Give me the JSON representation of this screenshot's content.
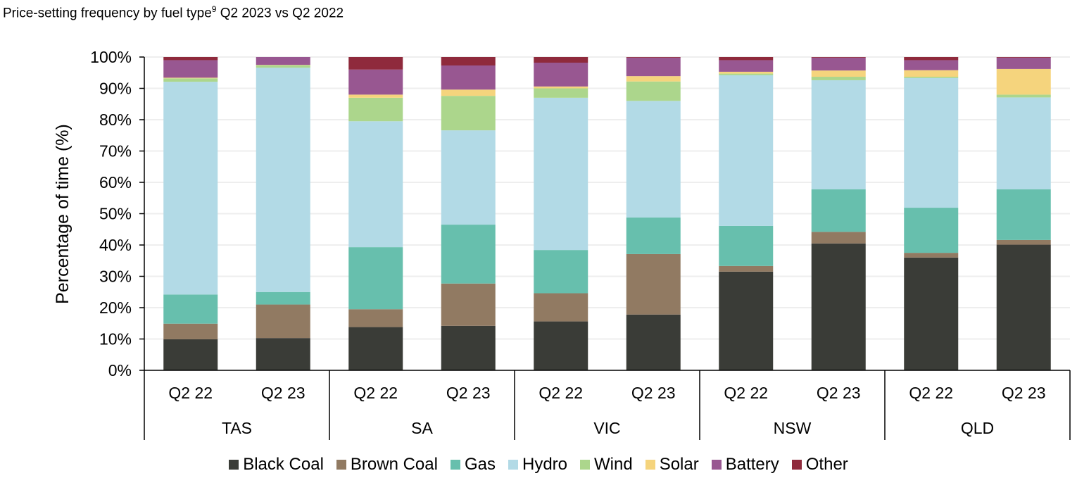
{
  "chart_data": {
    "type": "bar",
    "stacked": true,
    "title": "Price-setting frequency by fuel type",
    "title_superscript": "9",
    "title_suffix": " Q2 2023 vs Q2 2022",
    "xlabel": "",
    "ylabel": "Percentage of time (%)",
    "ylim": [
      0,
      100
    ],
    "yticks": [
      "0%",
      "10%",
      "20%",
      "30%",
      "40%",
      "50%",
      "60%",
      "70%",
      "80%",
      "90%",
      "100%"
    ],
    "grid": true,
    "legend_position": "bottom",
    "groups": [
      {
        "name": "TAS",
        "categories": [
          "Q2 22",
          "Q2 23"
        ]
      },
      {
        "name": "SA",
        "categories": [
          "Q2 22",
          "Q2 23"
        ]
      },
      {
        "name": "VIC",
        "categories": [
          "Q2 22",
          "Q2 23"
        ]
      },
      {
        "name": "NSW",
        "categories": [
          "Q2 22",
          "Q2 23"
        ]
      },
      {
        "name": "QLD",
        "categories": [
          "Q2 22",
          "Q2 23"
        ]
      }
    ],
    "categories": [
      "TAS Q2 22",
      "TAS Q2 23",
      "SA Q2 22",
      "SA Q2 23",
      "VIC Q2 22",
      "VIC Q2 23",
      "NSW Q2 22",
      "NSW Q2 23",
      "QLD Q2 22",
      "QLD Q2 23"
    ],
    "series": [
      {
        "name": "Black Coal",
        "color": "#3a3c37",
        "values": [
          9.9,
          10.3,
          13.8,
          14.2,
          15.6,
          17.8,
          31.5,
          40.5,
          36.0,
          40.1
        ]
      },
      {
        "name": "Brown Coal",
        "color": "#917a62",
        "values": [
          5.0,
          10.7,
          5.7,
          13.5,
          9.0,
          19.3,
          1.8,
          3.7,
          1.5,
          1.5
        ]
      },
      {
        "name": "Gas",
        "color": "#67bfad",
        "values": [
          9.3,
          4.0,
          19.8,
          18.8,
          13.8,
          11.7,
          12.8,
          13.6,
          14.4,
          16.2
        ]
      },
      {
        "name": "Hydro",
        "color": "#b2dae6",
        "values": [
          67.9,
          71.6,
          40.2,
          30.1,
          48.6,
          37.2,
          48.1,
          34.8,
          41.4,
          29.3
        ]
      },
      {
        "name": "Wind",
        "color": "#acd68c",
        "values": [
          1.1,
          0.8,
          7.5,
          11.0,
          3.0,
          6.2,
          0.5,
          1.1,
          0.4,
          0.9
        ]
      },
      {
        "name": "Solar",
        "color": "#f5d47d",
        "values": [
          0.2,
          0.1,
          1.0,
          2.0,
          0.6,
          1.7,
          0.6,
          2.0,
          2.1,
          8.2
        ]
      },
      {
        "name": "Battery",
        "color": "#985791",
        "values": [
          5.6,
          2.5,
          8.0,
          7.7,
          7.6,
          5.9,
          3.7,
          4.1,
          3.2,
          3.6
        ]
      },
      {
        "name": "Other",
        "color": "#8f2a3c",
        "values": [
          1.0,
          0.0,
          4.0,
          2.7,
          1.8,
          0.2,
          1.0,
          0.2,
          1.0,
          0.2
        ]
      }
    ]
  }
}
